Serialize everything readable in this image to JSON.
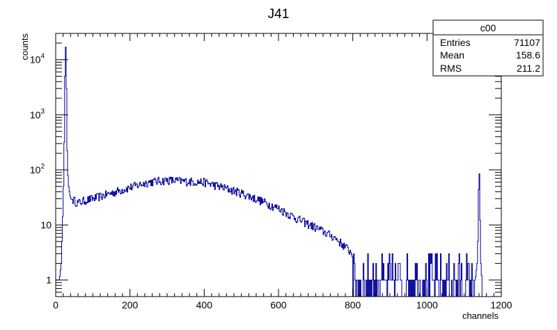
{
  "chart_data": {
    "type": "histogram",
    "title": "J41",
    "xlabel": "channels",
    "ylabel": "counts",
    "xlim": [
      0,
      1200
    ],
    "ylim": [
      0.5,
      30000
    ],
    "yscale": "log",
    "x_ticks": [
      {
        "value": 0,
        "label": "0"
      },
      {
        "value": 200,
        "label": "200"
      },
      {
        "value": 400,
        "label": "400"
      },
      {
        "value": 600,
        "label": "600"
      },
      {
        "value": 800,
        "label": "800"
      },
      {
        "value": 1000,
        "label": "1000"
      },
      {
        "value": 1200,
        "label": "1200"
      }
    ],
    "y_ticks": [
      {
        "value": 1,
        "base": "1",
        "exp": ""
      },
      {
        "value": 10,
        "base": "10",
        "exp": ""
      },
      {
        "value": 100,
        "base": "10",
        "exp": "2"
      },
      {
        "value": 1000,
        "base": "10",
        "exp": "3"
      },
      {
        "value": 10000,
        "base": "10",
        "exp": "4"
      }
    ],
    "line_color": "#000099",
    "grid": false,
    "series": [
      {
        "x": [
          0,
          5,
          10,
          15,
          18,
          20,
          22,
          24,
          25,
          26,
          27,
          28,
          29,
          30,
          32,
          35,
          40,
          50,
          60,
          80,
          100,
          150,
          200,
          250,
          300,
          350,
          400,
          450,
          500,
          550,
          600,
          650,
          700,
          750,
          780,
          800,
          850,
          900,
          950,
          1000,
          1050,
          1100,
          1130,
          1135,
          1138,
          1140,
          1142,
          1145,
          1150
        ],
        "counts": [
          1,
          1,
          1,
          2,
          8,
          25,
          100,
          1000,
          5000,
          11000,
          17000,
          12000,
          3000,
          500,
          100,
          50,
          30,
          28,
          25,
          28,
          30,
          38,
          48,
          60,
          65,
          62,
          60,
          48,
          38,
          28,
          20,
          13,
          9,
          6,
          4,
          3,
          2,
          1.5,
          1.2,
          1,
          1,
          1,
          1,
          2,
          8,
          240,
          30,
          2,
          0
        ]
      }
    ],
    "stats_box": {
      "name": "c00",
      "rows": [
        {
          "label": "Entries",
          "value": "71107"
        },
        {
          "label": "Mean",
          "value": "158.6"
        },
        {
          "label": "RMS",
          "value": "211.2"
        }
      ]
    }
  }
}
